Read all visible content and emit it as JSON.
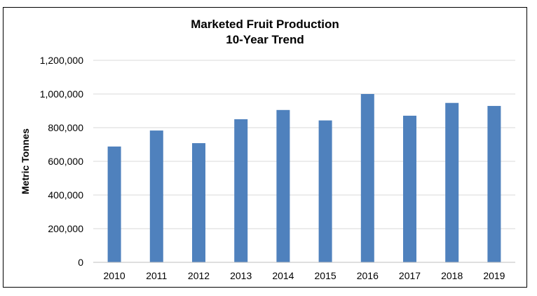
{
  "chart_data": {
    "type": "bar",
    "title": "Marketed Fruit Production",
    "subtitle": "10-Year Trend",
    "ylabel": "Metric Tonnes",
    "xlabel": "",
    "categories": [
      "2010",
      "2011",
      "2012",
      "2013",
      "2014",
      "2015",
      "2016",
      "2017",
      "2018",
      "2019"
    ],
    "values": [
      688000,
      783000,
      708000,
      850000,
      905000,
      843000,
      1000000,
      871000,
      947000,
      929000
    ],
    "ylim": [
      0,
      1200000
    ],
    "yticks": [
      0,
      200000,
      400000,
      600000,
      800000,
      1000000,
      1200000
    ],
    "ytick_labels": [
      "0",
      "200,000",
      "400,000",
      "600,000",
      "800,000",
      "1,000,000",
      "1,200,000"
    ],
    "grid": true,
    "legend": "none",
    "bar_color": "#4f81bd",
    "grid_color": "#d9d9d9"
  }
}
